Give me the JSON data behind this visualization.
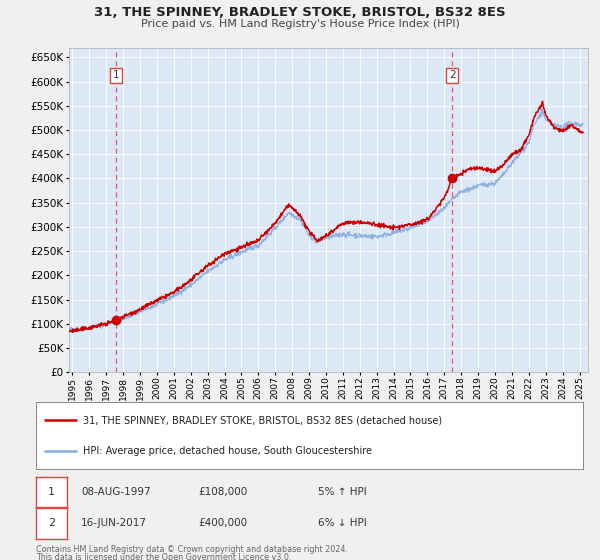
{
  "title": "31, THE SPINNEY, BRADLEY STOKE, BRISTOL, BS32 8ES",
  "subtitle": "Price paid vs. HM Land Registry's House Price Index (HPI)",
  "legend_line1": "31, THE SPINNEY, BRADLEY STOKE, BRISTOL, BS32 8ES (detached house)",
  "legend_line2": "HPI: Average price, detached house, South Gloucestershire",
  "footer1": "Contains HM Land Registry data © Crown copyright and database right 2024.",
  "footer2": "This data is licensed under the Open Government Licence v3.0.",
  "sale1_label": "1",
  "sale1_date": "08-AUG-1997",
  "sale1_price": "£108,000",
  "sale1_hpi": "5% ↑ HPI",
  "sale1_year": 1997.6,
  "sale1_value": 108000,
  "sale2_label": "2",
  "sale2_date": "16-JUN-2017",
  "sale2_price": "£400,000",
  "sale2_hpi": "6% ↓ HPI",
  "sale2_year": 2017.46,
  "sale2_value": 400000,
  "red_color": "#cc0000",
  "blue_color": "#88aadd",
  "dashed_color": "#dd4444",
  "ylim_min": 0,
  "ylim_max": 670000,
  "xlim_min": 1994.8,
  "xlim_max": 2025.5,
  "background_color": "#f0f0f0",
  "plot_bg_color": "#dce8f5",
  "grid_color": "#ffffff",
  "spine_color": "#aaaaaa"
}
